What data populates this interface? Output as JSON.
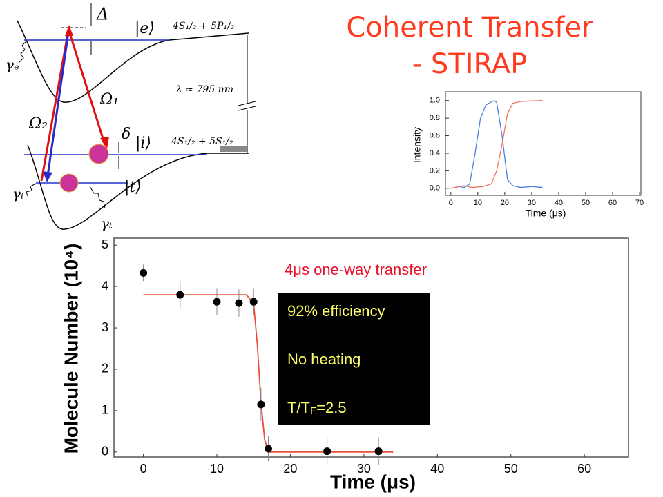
{
  "title": [
    "Coherent Transfer",
    "- STIRAP"
  ],
  "diagram": {
    "labels": {
      "delta_big": "Δ",
      "e": "|e⟩",
      "e_state": "4S₁/₂ + 5P₁/₂",
      "gamma_e": "γₑ",
      "omega1": "Ω₁",
      "lambda": "λ ≈ 795 nm",
      "omega2": "Ω₂",
      "delta_small": "δ",
      "i": "|i⟩",
      "i_state": "4S₁/₂ + 5S₁/₂",
      "t": "|t⟩",
      "gamma_i": "γᵢ",
      "gamma_t": "γₜ"
    }
  },
  "chart_data": [
    {
      "type": "line",
      "xlabel": "Time (μs)",
      "ylabel": "Intensity",
      "xlim": [
        -2,
        70.5
      ],
      "ylim": [
        -0.08,
        1.1
      ],
      "xticks": [
        0,
        10,
        20,
        30,
        40,
        50,
        60,
        70
      ],
      "yticks": [
        {
          "value": 0,
          "label": "0.0"
        },
        0.2,
        0.4,
        0.6,
        0.8,
        {
          "value": 1,
          "label": "1.0"
        }
      ],
      "series": [
        {
          "color": "#4a7fe0",
          "x": [
            0,
            3,
            5,
            7,
            9,
            11,
            13,
            16,
            17,
            19,
            21,
            23,
            26,
            30,
            34
          ],
          "values": [
            0.0,
            0.02,
            0.01,
            0.05,
            0.4,
            0.8,
            0.95,
            1.0,
            0.98,
            0.6,
            0.1,
            0.03,
            0.01,
            0.02,
            0.01
          ]
        },
        {
          "color": "#f07060",
          "x": [
            0,
            3,
            5,
            8,
            12,
            15,
            17,
            19,
            21,
            23,
            26,
            34
          ],
          "values": [
            0.0,
            0.02,
            0.03,
            0.01,
            0.02,
            0.05,
            0.2,
            0.5,
            0.85,
            0.97,
            0.99,
            1.0
          ]
        }
      ]
    },
    {
      "type": "scatter",
      "xlabel": "Time (μs)",
      "ylabel": "Molecule Number (10⁴)",
      "xlim": [
        -4,
        66
      ],
      "ylim": [
        -0.12,
        5.17
      ],
      "xticks": [
        0,
        10,
        20,
        30,
        40,
        50,
        60
      ],
      "yticks": [
        0,
        1,
        2,
        3,
        4,
        5
      ],
      "color": "#000000",
      "x": [
        0,
        5,
        10,
        13,
        15,
        16,
        17,
        25,
        32
      ],
      "values": [
        4.33,
        3.8,
        3.63,
        3.6,
        3.63,
        1.15,
        0.08,
        0.02,
        0.02
      ],
      "errors": [
        0.2,
        0.33,
        0.33,
        0.33,
        0.33,
        0.4,
        0.3,
        0.33,
        0.33
      ],
      "fit": {
        "color": "#e8503a",
        "x": [
          0,
          14,
          15,
          15.5,
          16,
          16.5,
          17,
          34
        ],
        "values": [
          3.8,
          3.8,
          3.6,
          2.6,
          1.2,
          0.3,
          0.0,
          0.0
        ]
      },
      "annotation": "4μs one-way transfer",
      "box": [
        "92% efficiency",
        "No heating",
        [
          "T/T",
          "F",
          "=2.5"
        ]
      ]
    }
  ]
}
